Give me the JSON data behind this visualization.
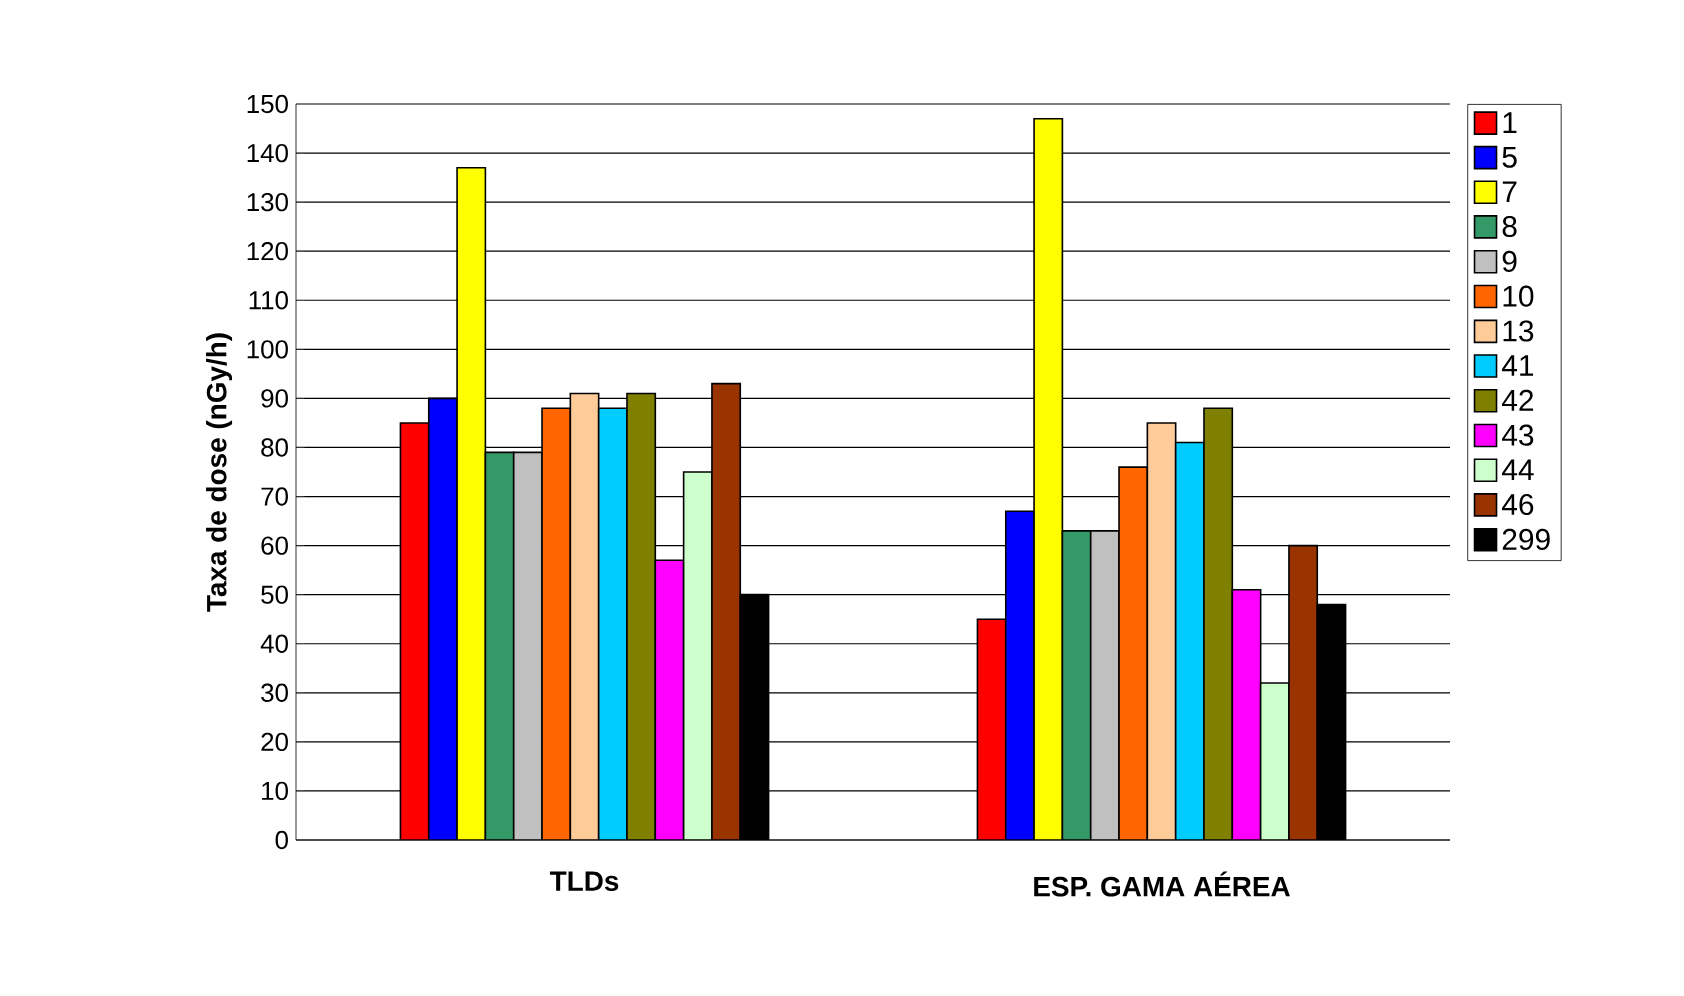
{
  "chart_data": {
    "type": "bar",
    "ylabel": "Taxa de dose (nGy/h)",
    "categories": [
      "TLDs",
      "ESP. GAMA AÉREA"
    ],
    "ylim": [
      0,
      150
    ],
    "yticks": [
      0,
      10,
      20,
      30,
      40,
      50,
      60,
      70,
      80,
      90,
      100,
      110,
      120,
      130,
      140,
      150
    ],
    "grid": "y",
    "legend": "right",
    "series": [
      {
        "name": "1",
        "color": "#ff0000",
        "values": [
          85,
          45
        ]
      },
      {
        "name": "5",
        "color": "#0000ff",
        "values": [
          90,
          67
        ]
      },
      {
        "name": "7",
        "color": "#ffff00",
        "values": [
          137,
          147
        ]
      },
      {
        "name": "8",
        "color": "#339966",
        "values": [
          79,
          63
        ]
      },
      {
        "name": "9",
        "color": "#c0c0c0",
        "values": [
          79,
          63
        ]
      },
      {
        "name": "10",
        "color": "#ff6600",
        "values": [
          88,
          76
        ]
      },
      {
        "name": "13",
        "color": "#ffcc99",
        "values": [
          91,
          85
        ]
      },
      {
        "name": "41",
        "color": "#00ccff",
        "values": [
          88,
          81
        ]
      },
      {
        "name": "42",
        "color": "#808000",
        "values": [
          91,
          88
        ]
      },
      {
        "name": "43",
        "color": "#ff00ff",
        "values": [
          57,
          51
        ]
      },
      {
        "name": "44",
        "color": "#ccffcc",
        "values": [
          75,
          32
        ]
      },
      {
        "name": "46",
        "color": "#993300",
        "values": [
          93,
          60
        ]
      },
      {
        "name": "299",
        "color": "#000000",
        "values": [
          50,
          48
        ]
      }
    ]
  }
}
